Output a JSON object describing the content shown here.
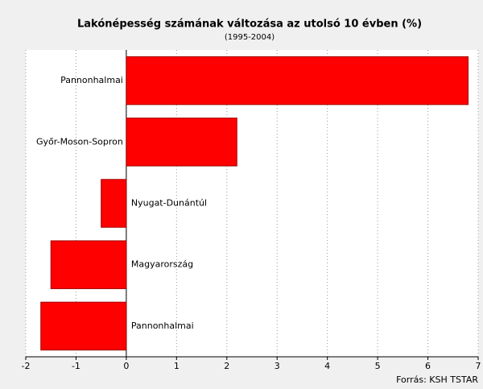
{
  "chart_data": {
    "type": "bar",
    "orientation": "horizontal",
    "title": "Lakónépesség számának változása az utolsó 10 évben (%)",
    "subtitle": "(1995-2004)",
    "source": "Forrás: KSH TSTAR",
    "categories": [
      "Pannonhalmai",
      "Győr-Moson-Sopron",
      "Nyugat-Dunántúl",
      "Magyarország",
      "Pannonhalmai"
    ],
    "values": [
      6.8,
      2.2,
      -0.5,
      -1.5,
      -1.7
    ],
    "color": "#ff0000",
    "xlim": [
      -2,
      7
    ],
    "xticks": [
      -2,
      -1,
      0,
      1,
      2,
      3,
      4,
      5,
      6,
      7
    ],
    "grid": true
  }
}
